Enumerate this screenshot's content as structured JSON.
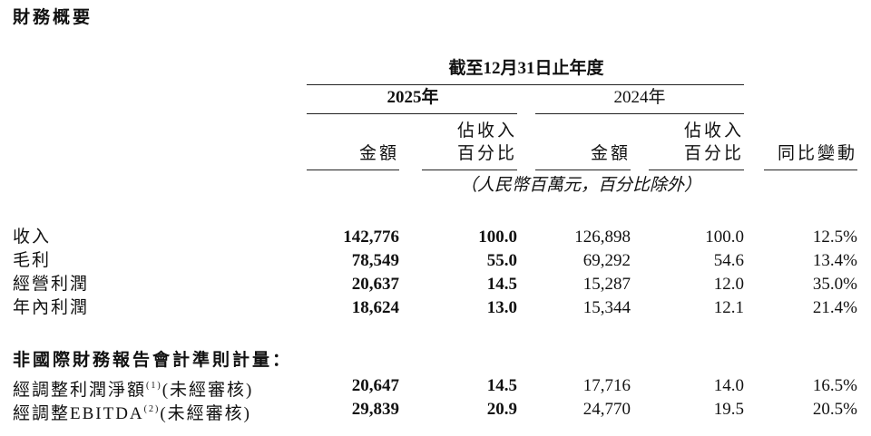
{
  "title": "財務概要",
  "table": {
    "period_header": "截至12月31日止年度",
    "years": [
      "2025年",
      "2024年"
    ],
    "columns": [
      [
        "金額"
      ],
      [
        "佔收入",
        "百分比"
      ],
      [
        "金額"
      ],
      [
        "佔收入",
        "百分比"
      ],
      [
        "同比變動"
      ]
    ],
    "unit_note": "（人民幣百萬元，百分比除外）",
    "rows": [
      {
        "label": "收入",
        "values": [
          "142,776",
          "100.0",
          "126,898",
          "100.0",
          "12.5%"
        ]
      },
      {
        "label": "毛利",
        "values": [
          "78,549",
          "55.0",
          "69,292",
          "54.6",
          "13.4%"
        ]
      },
      {
        "label": "經營利潤",
        "values": [
          "20,637",
          "14.5",
          "15,287",
          "12.0",
          "35.0%"
        ]
      },
      {
        "label": "年內利潤",
        "values": [
          "18,624",
          "13.0",
          "15,344",
          "12.1",
          "21.4%"
        ]
      }
    ],
    "section": "非國際財務報告會計準則計量：",
    "adjusted_rows": [
      {
        "label": "經調整利潤淨額",
        "note": "(1)",
        "suffix": "(未經審核)",
        "values": [
          "20,647",
          "14.5",
          "17,716",
          "14.0",
          "16.5%"
        ]
      },
      {
        "label": "經調整EBITDA",
        "note": "(2)",
        "suffix": "(未經審核)",
        "values": [
          "29,839",
          "20.9",
          "24,770",
          "19.5",
          "20.5%"
        ]
      }
    ]
  }
}
